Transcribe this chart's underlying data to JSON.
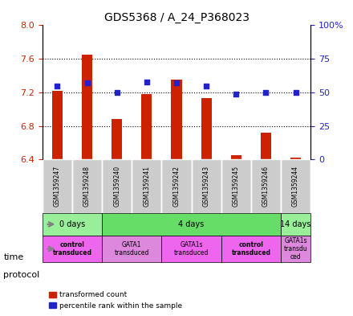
{
  "title": "GDS5368 / A_24_P368023",
  "samples": [
    "GSM1359247",
    "GSM1359248",
    "GSM1359240",
    "GSM1359241",
    "GSM1359242",
    "GSM1359243",
    "GSM1359245",
    "GSM1359246",
    "GSM1359244"
  ],
  "transformed_count": [
    7.22,
    7.65,
    6.88,
    7.18,
    7.35,
    7.13,
    6.45,
    6.72,
    6.42
  ],
  "percentile_rank": [
    55,
    57,
    50,
    58,
    57,
    55,
    49,
    50,
    50
  ],
  "ylim": [
    6.4,
    8.0
  ],
  "y2lim": [
    0,
    100
  ],
  "yticks": [
    6.4,
    6.8,
    7.2,
    7.6,
    8.0
  ],
  "y2ticks": [
    0,
    25,
    50,
    75,
    100
  ],
  "y2ticklabels": [
    "0",
    "25",
    "50",
    "75",
    "100%"
  ],
  "bar_color": "#cc2200",
  "dot_color": "#2222cc",
  "bar_bottom": 6.4,
  "time_groups": [
    {
      "label": "0 days",
      "start": 0,
      "end": 2,
      "color": "#99ee99"
    },
    {
      "label": "4 days",
      "start": 2,
      "end": 8,
      "color": "#66dd66"
    },
    {
      "label": "14 days",
      "start": 8,
      "end": 9,
      "color": "#99ee99"
    }
  ],
  "protocol_groups": [
    {
      "label": "control\ntransduced",
      "start": 0,
      "end": 2,
      "color": "#ee66ee",
      "bold": true
    },
    {
      "label": "GATA1\ntransduced",
      "start": 2,
      "end": 4,
      "color": "#dd88dd",
      "bold": false
    },
    {
      "label": "GATA1s\ntransduced",
      "start": 4,
      "end": 6,
      "color": "#ee66ee",
      "bold": false
    },
    {
      "label": "control\ntransduced",
      "start": 6,
      "end": 8,
      "color": "#ee66ee",
      "bold": true
    },
    {
      "label": "GATA1s\ntransdu\nced",
      "start": 8,
      "end": 9,
      "color": "#dd88dd",
      "bold": false
    }
  ],
  "background_color": "#ffffff",
  "plot_bg": "#ffffff",
  "grid_color": "#000000",
  "sample_bg": "#cccccc"
}
